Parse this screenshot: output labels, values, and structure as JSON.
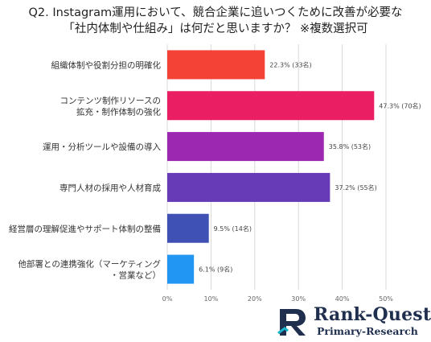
{
  "title": {
    "line1": "Q2. Instagram運用において、競合企業に追いつくために改善が必要な",
    "line2": "「社内体制や仕組み」は何だと思いますか？ ※複数選択可"
  },
  "logo": {
    "name": "Rank-Quest",
    "sub": "Primary-Research"
  },
  "chart_data": {
    "type": "bar",
    "orientation": "horizontal",
    "categories": [
      [
        "組織体制や役割分担の明確化"
      ],
      [
        "コンテンツ制作リソースの",
        "拡充・制作体制の強化"
      ],
      [
        "運用・分析ツールや設備の導入"
      ],
      [
        "専門人材の採用や人材育成"
      ],
      [
        "経営層の理解促進やサポート体制の整備"
      ],
      [
        "他部署との連携強化（マーケティング",
        "・営業など）"
      ]
    ],
    "values": [
      22.3,
      47.3,
      35.8,
      37.2,
      9.5,
      6.1
    ],
    "labels": [
      "22.3% (33名)",
      "47.3% (70名)",
      "35.8% (53名)",
      "37.2% (55名)",
      "9.5% (14名)",
      "6.1% (9名)"
    ],
    "colors": [
      "#f44336",
      "#e91e63",
      "#9c27b0",
      "#673ab7",
      "#3f51b5",
      "#2196f3"
    ],
    "xlim": [
      0,
      50
    ],
    "xticks": [
      0,
      10,
      20,
      30,
      40,
      50
    ],
    "xtick_labels": [
      "0%",
      "10%",
      "20%",
      "30%",
      "40%",
      "50%"
    ],
    "grid": "vertical"
  }
}
